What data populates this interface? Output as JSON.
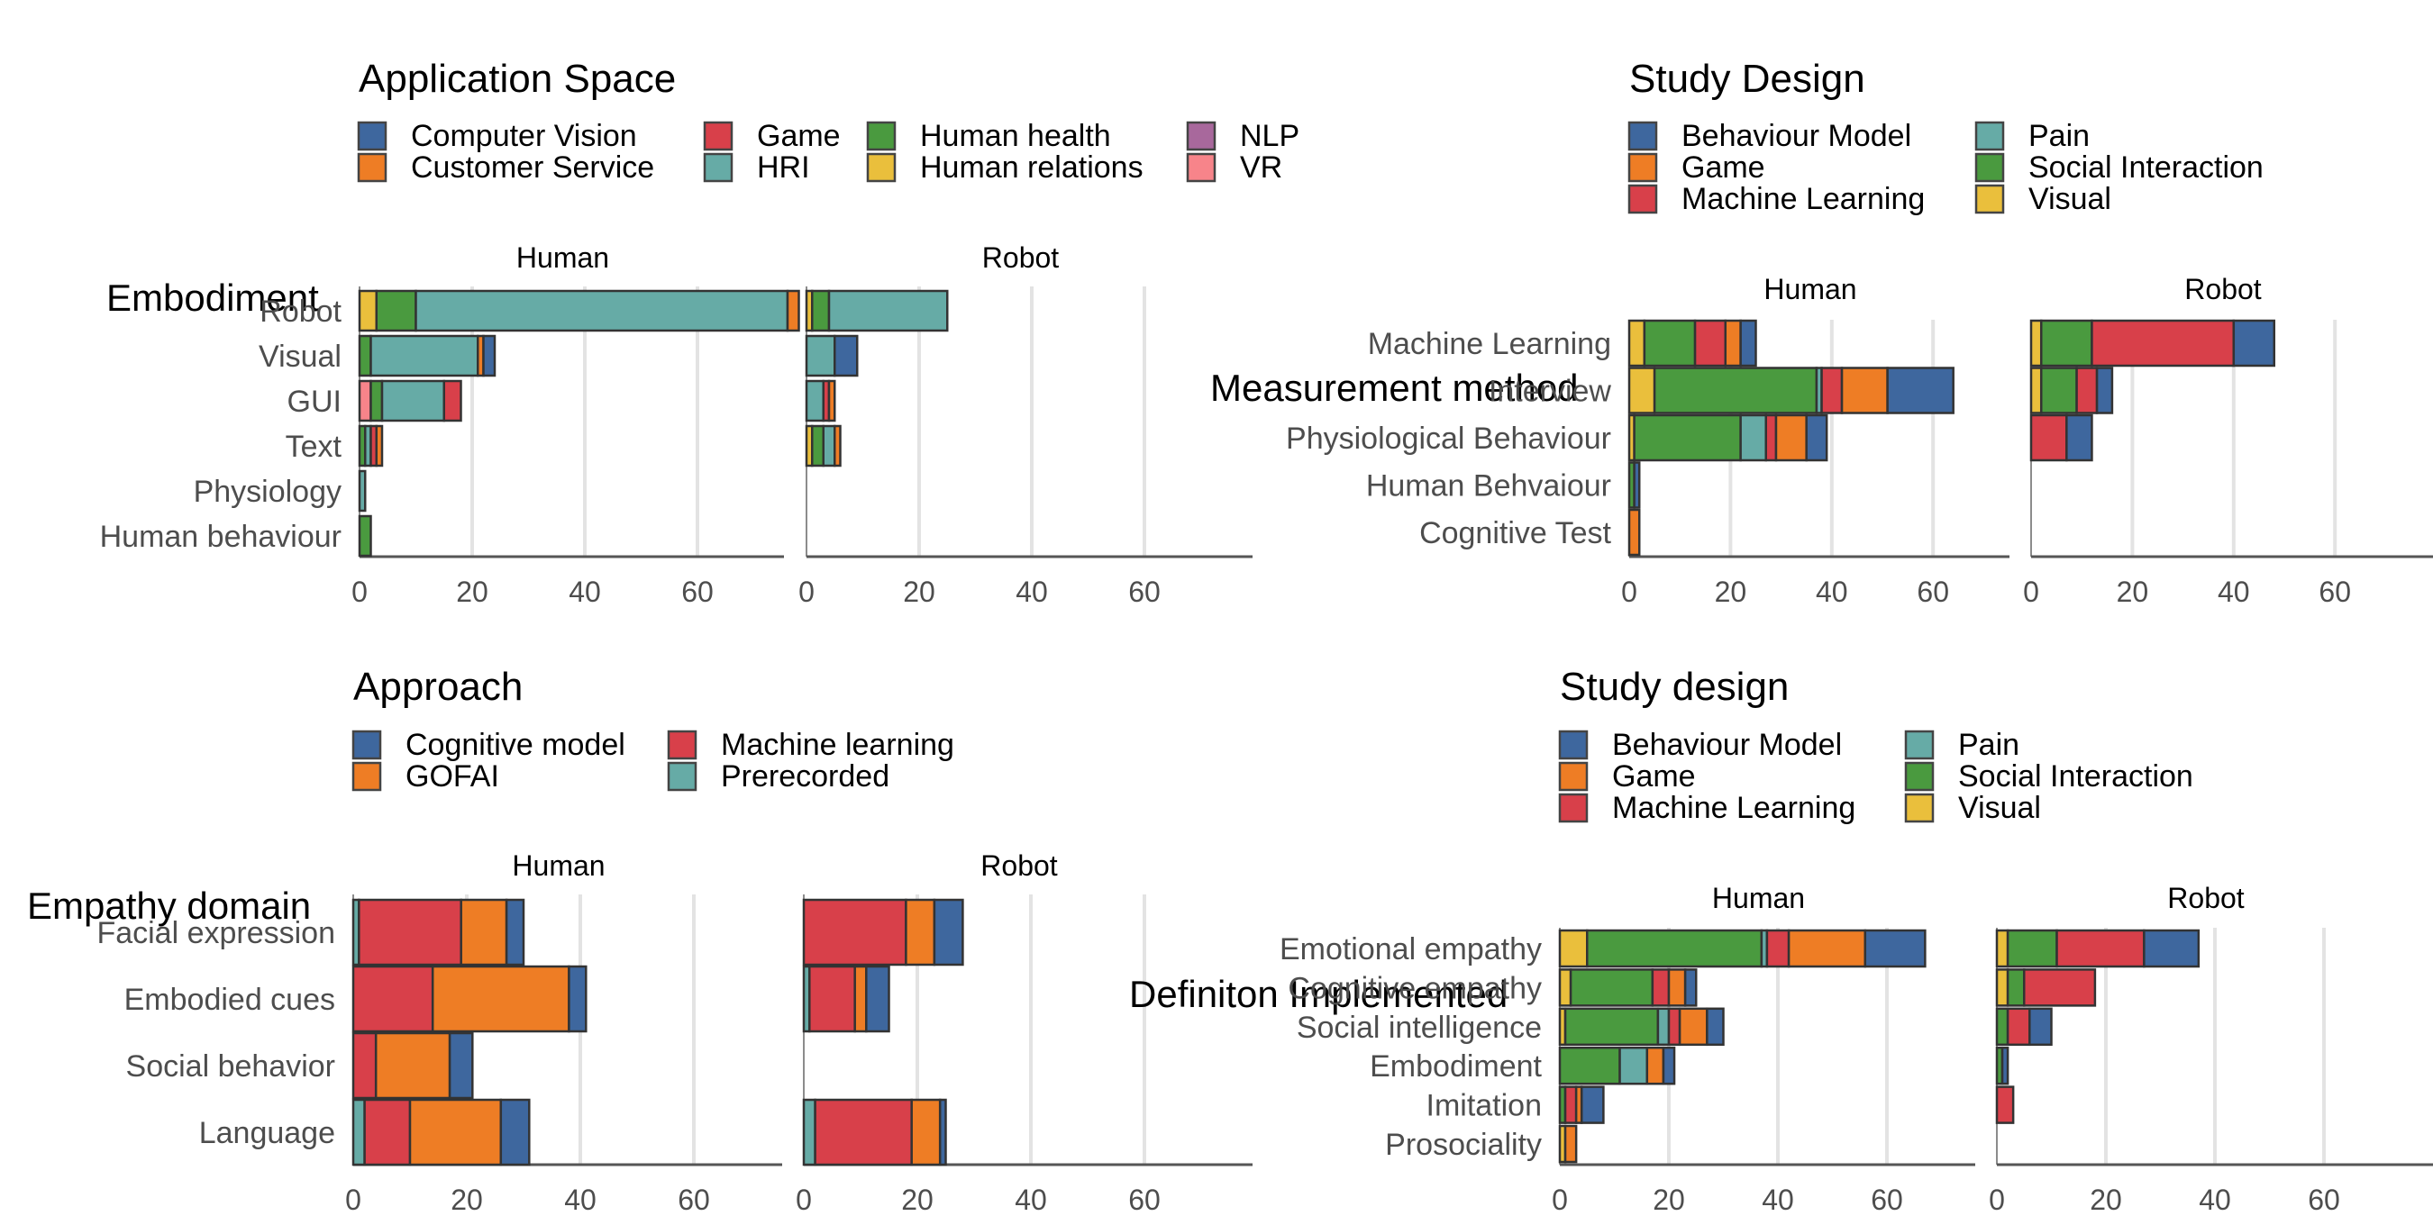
{
  "colors": {
    "blue": "#3E679E",
    "orange": "#EE7D25",
    "red": "#D8404A",
    "teal": "#66ABA6",
    "green": "#4A9A3F",
    "yellow": "#EABF3C",
    "purple": "#A8689C",
    "pink": "#F7848A",
    "grid": "#e3e3e3",
    "axis": "#555555"
  },
  "chart_data": [
    {
      "type": "bar",
      "orientation": "horizontal",
      "stacked": true,
      "ylabel": "Embodiment",
      "legend_title": "Application Space",
      "legend": [
        "Computer Vision",
        "Customer Service",
        "Game",
        "HRI",
        "Human health",
        "Human relations",
        "NLP",
        "VR"
      ],
      "legend_colors": [
        "#3E679E",
        "#EE7D25",
        "#D8404A",
        "#66ABA6",
        "#4A9A3F",
        "#EABF3C",
        "#A8689C",
        "#F7848A"
      ],
      "stack_order": [
        "VR",
        "Human relations",
        "NLP",
        "Human health",
        "HRI",
        "Game",
        "Customer Service",
        "Computer Vision"
      ],
      "facets": [
        "Human",
        "Robot"
      ],
      "categories": [
        "Robot",
        "Visual",
        "GUI",
        "Text",
        "Physiology",
        "Human behaviour"
      ],
      "xlim": [
        0,
        80
      ],
      "xticks": [
        0,
        20,
        40,
        60
      ],
      "tick_labels": [
        "0",
        "20",
        "40",
        "60"
      ],
      "values": {
        "Human": {
          "Robot": {
            "Human relations": 3,
            "Human health": 7,
            "HRI": 66,
            "Customer Service": 2
          },
          "Visual": {
            "Human health": 2,
            "HRI": 19,
            "Customer Service": 1,
            "Computer Vision": 2
          },
          "GUI": {
            "VR": 2,
            "Human health": 2,
            "HRI": 11,
            "Game": 3
          },
          "Text": {
            "Human health": 1,
            "Game": 1,
            "HRI": 1,
            "Customer Service": 1
          },
          "Physiology": {
            "HRI": 1
          },
          "Human behaviour": {
            "Human health": 2
          }
        },
        "Robot": {
          "Robot": {
            "Human relations": 1,
            "Human health": 3,
            "HRI": 21
          },
          "Visual": {
            "HRI": 5,
            "Computer Vision": 4
          },
          "GUI": {
            "HRI": 3,
            "Customer Service": 1,
            "Game": 1
          },
          "Text": {
            "Human relations": 1,
            "Human health": 2,
            "HRI": 2,
            "Customer Service": 1
          },
          "Physiology": {},
          "Human behaviour": {}
        }
      }
    },
    {
      "type": "bar",
      "orientation": "horizontal",
      "stacked": true,
      "ylabel": "Measurement method",
      "legend_title": "Study Design",
      "legend": [
        "Behaviour Model",
        "Game",
        "Machine Learning",
        "Pain",
        "Social Interaction",
        "Visual"
      ],
      "legend_colors": [
        "#3E679E",
        "#EE7D25",
        "#D8404A",
        "#66ABA6",
        "#4A9A3F",
        "#EABF3C"
      ],
      "stack_order": [
        "Visual",
        "Social Interaction",
        "Pain",
        "Machine Learning",
        "Game",
        "Behaviour Model"
      ],
      "facets": [
        "Human",
        "Robot"
      ],
      "categories": [
        "Machine Learning",
        "Interview",
        "Physiological Behaviour",
        "Human Behvaiour",
        "Cognitive Test"
      ],
      "xlim": [
        0,
        80
      ],
      "xticks": [
        0,
        20,
        40,
        60
      ],
      "tick_labels": [
        "0",
        "20",
        "40",
        "60"
      ],
      "values": {
        "Human": {
          "Machine Learning": {
            "Visual": 3,
            "Social Interaction": 10,
            "Machine Learning": 6,
            "Game": 3,
            "Behaviour Model": 3
          },
          "Interview": {
            "Visual": 5,
            "Social Interaction": 32,
            "Pain": 1,
            "Machine Learning": 4,
            "Game": 9,
            "Behaviour Model": 13
          },
          "Physiological Behaviour": {
            "Visual": 1,
            "Social Interaction": 21,
            "Pain": 5,
            "Machine Learning": 2,
            "Game": 6,
            "Behaviour Model": 4
          },
          "Human Behvaiour": {
            "Social Interaction": 1,
            "Behaviour Model": 1
          },
          "Cognitive Test": {
            "Game": 2
          }
        },
        "Robot": {
          "Machine Learning": {
            "Visual": 2,
            "Social Interaction": 10,
            "Machine Learning": 28,
            "Behaviour Model": 8
          },
          "Interview": {
            "Visual": 2,
            "Social Interaction": 7,
            "Machine Learning": 4,
            "Behaviour Model": 3
          },
          "Physiological Behaviour": {
            "Machine Learning": 7,
            "Behaviour Model": 5
          },
          "Human Behvaiour": {},
          "Cognitive Test": {}
        }
      }
    },
    {
      "type": "bar",
      "orientation": "horizontal",
      "stacked": true,
      "ylabel": "Empathy domain",
      "legend_title": "Approach",
      "legend": [
        "Cognitive model",
        "GOFAI",
        "Machine learning",
        "Prerecorded"
      ],
      "legend_colors": [
        "#3E679E",
        "#EE7D25",
        "#D8404A",
        "#66ABA6"
      ],
      "stack_order": [
        "Prerecorded",
        "Machine learning",
        "GOFAI",
        "Cognitive model"
      ],
      "facets": [
        "Human",
        "Robot"
      ],
      "categories": [
        "Facial expression",
        "Embodied cues",
        "Social behavior",
        "Language"
      ],
      "xlim": [
        0,
        80
      ],
      "xticks": [
        0,
        20,
        40,
        60
      ],
      "tick_labels": [
        "0",
        "20",
        "40",
        "60"
      ],
      "values": {
        "Human": {
          "Facial expression": {
            "Prerecorded": 1,
            "Machine learning": 18,
            "GOFAI": 8,
            "Cognitive model": 3
          },
          "Embodied cues": {
            "Machine learning": 14,
            "GOFAI": 24,
            "Cognitive model": 3
          },
          "Social behavior": {
            "Machine learning": 4,
            "GOFAI": 13,
            "Cognitive model": 4
          },
          "Language": {
            "Prerecorded": 2,
            "Machine learning": 8,
            "GOFAI": 16,
            "Cognitive model": 5
          }
        },
        "Robot": {
          "Facial expression": {
            "Machine learning": 18,
            "GOFAI": 5,
            "Cognitive model": 5
          },
          "Embodied cues": {
            "Prerecorded": 1,
            "Machine learning": 8,
            "GOFAI": 2,
            "Cognitive model": 4
          },
          "Social behavior": {},
          "Language": {
            "Prerecorded": 2,
            "Machine learning": 17,
            "GOFAI": 5,
            "Cognitive model": 1
          }
        }
      }
    },
    {
      "type": "bar",
      "orientation": "horizontal",
      "stacked": true,
      "ylabel": "Definiton Implemented",
      "legend_title": "Study design",
      "legend": [
        "Behaviour Model",
        "Game",
        "Machine Learning",
        "Pain",
        "Social Interaction",
        "Visual"
      ],
      "legend_colors": [
        "#3E679E",
        "#EE7D25",
        "#D8404A",
        "#66ABA6",
        "#4A9A3F",
        "#EABF3C"
      ],
      "stack_order": [
        "Visual",
        "Social Interaction",
        "Pain",
        "Machine Learning",
        "Game",
        "Behaviour Model"
      ],
      "facets": [
        "Human",
        "Robot"
      ],
      "categories": [
        "Emotional empathy",
        "Cognitive empathy",
        "Social intelligence",
        "Embodiment",
        "Imitation",
        "Prosociality"
      ],
      "xlim": [
        0,
        80
      ],
      "xticks": [
        0,
        20,
        40,
        60
      ],
      "tick_labels": [
        "0",
        "20",
        "40",
        "60"
      ],
      "values": {
        "Human": {
          "Emotional empathy": {
            "Visual": 5,
            "Social Interaction": 32,
            "Pain": 1,
            "Machine Learning": 4,
            "Game": 14,
            "Behaviour Model": 11
          },
          "Cognitive empathy": {
            "Visual": 2,
            "Social Interaction": 15,
            "Machine Learning": 3,
            "Game": 3,
            "Behaviour Model": 2
          },
          "Social intelligence": {
            "Visual": 1,
            "Social Interaction": 17,
            "Pain": 2,
            "Machine Learning": 2,
            "Game": 5,
            "Behaviour Model": 3
          },
          "Embodiment": {
            "Social Interaction": 11,
            "Pain": 5,
            "Game": 3,
            "Behaviour Model": 2
          },
          "Imitation": {
            "Social Interaction": 1,
            "Machine Learning": 2,
            "Game": 1,
            "Behaviour Model": 4
          },
          "Prosociality": {
            "Visual": 1,
            "Game": 2
          }
        },
        "Robot": {
          "Emotional empathy": {
            "Visual": 2,
            "Social Interaction": 9,
            "Machine Learning": 16,
            "Behaviour Model": 10
          },
          "Cognitive empathy": {
            "Visual": 2,
            "Social Interaction": 3,
            "Machine Learning": 13
          },
          "Social intelligence": {
            "Social Interaction": 2,
            "Machine Learning": 4,
            "Behaviour Model": 4
          },
          "Embodiment": {
            "Social Interaction": 1,
            "Behaviour Model": 1
          },
          "Imitation": {
            "Machine Learning": 3
          },
          "Prosociality": {}
        }
      }
    }
  ]
}
